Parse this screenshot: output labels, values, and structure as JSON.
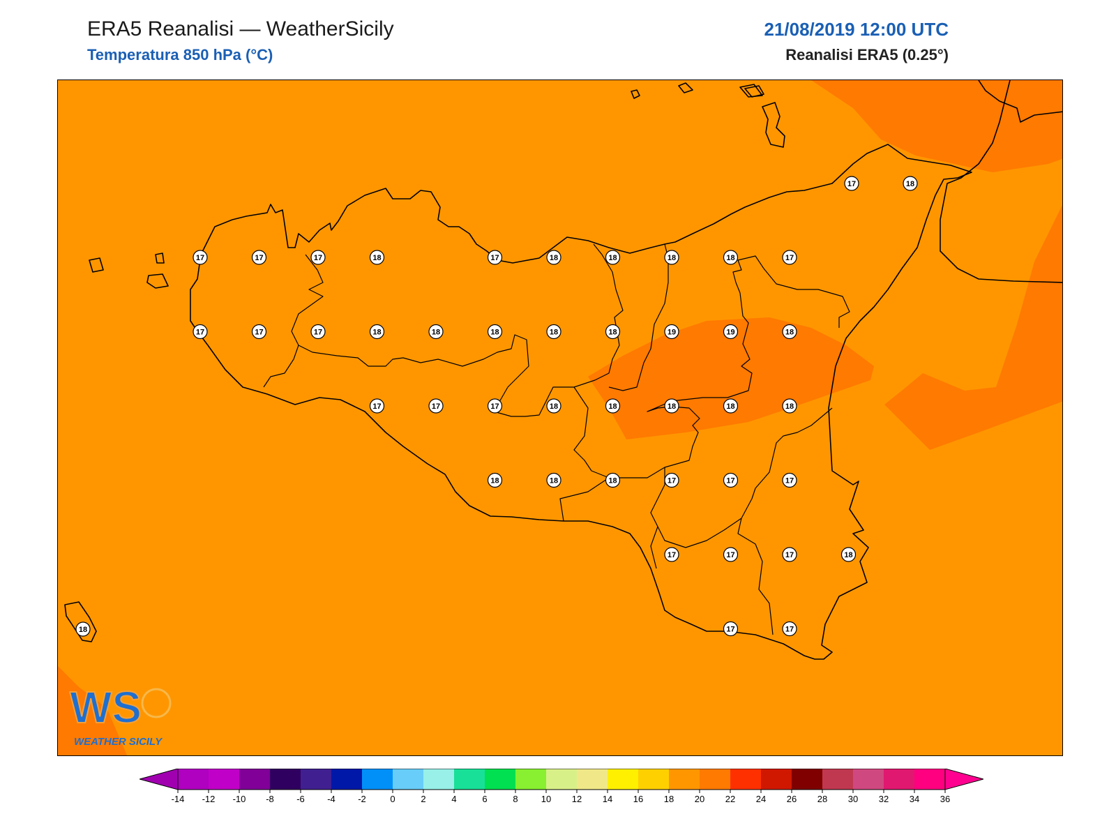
{
  "header": {
    "title": "ERA5 Reanalisi — WeatherSicily",
    "subtitle": "Temperatura 850 hPa (°C)",
    "datetime": "21/08/2019 12:00 UTC",
    "model": "Reanalisi ERA5 (0.25°)"
  },
  "logo": {
    "text": "WEATHER SICILY",
    "mark": "WS"
  },
  "map": {
    "base_color": "#ff9600",
    "warm_color": "#ff7a00",
    "station_values": [
      [
        17,
        17,
        17,
        18,
        null,
        17,
        18,
        18,
        18,
        18,
        17
      ],
      [
        17,
        17,
        17,
        18,
        18,
        18,
        18,
        18,
        19,
        19,
        18
      ],
      [
        null,
        null,
        null,
        17,
        17,
        17,
        18,
        18,
        18,
        18,
        18
      ],
      [
        null,
        null,
        null,
        null,
        null,
        18,
        18,
        18,
        17,
        17,
        17
      ],
      [
        null,
        null,
        null,
        null,
        null,
        null,
        null,
        null,
        17,
        17,
        17,
        18
      ],
      [
        null,
        null,
        null,
        null,
        null,
        null,
        null,
        null,
        null,
        17,
        17
      ]
    ],
    "extra_stations": [
      {
        "value": 17,
        "label": "17"
      },
      {
        "value": 18,
        "label": "18"
      },
      {
        "value": 18,
        "label": "18"
      }
    ]
  },
  "colorbar": {
    "ticks": [
      "-14",
      "-12",
      "-10",
      "-8",
      "-6",
      "-4",
      "-2",
      "0",
      "2",
      "4",
      "6",
      "8",
      "10",
      "12",
      "14",
      "16",
      "18",
      "20",
      "22",
      "24",
      "26",
      "28",
      "30",
      "32",
      "34",
      "36"
    ],
    "colors": [
      "#b000c0",
      "#c000c8",
      "#800098",
      "#300060",
      "#402090",
      "#0018a8",
      "#0090f8",
      "#68cdf8",
      "#98f0e8",
      "#18e098",
      "#00e050",
      "#88f030",
      "#d8f088",
      "#f0e888",
      "#fff000",
      "#ffd000",
      "#ff9600",
      "#ff7a00",
      "#ff3000",
      "#d01800",
      "#800000",
      "#c03850",
      "#d04880",
      "#e01870",
      "#ff0080"
    ],
    "under_color": "#a000b0",
    "over_color": "#ff0090"
  }
}
